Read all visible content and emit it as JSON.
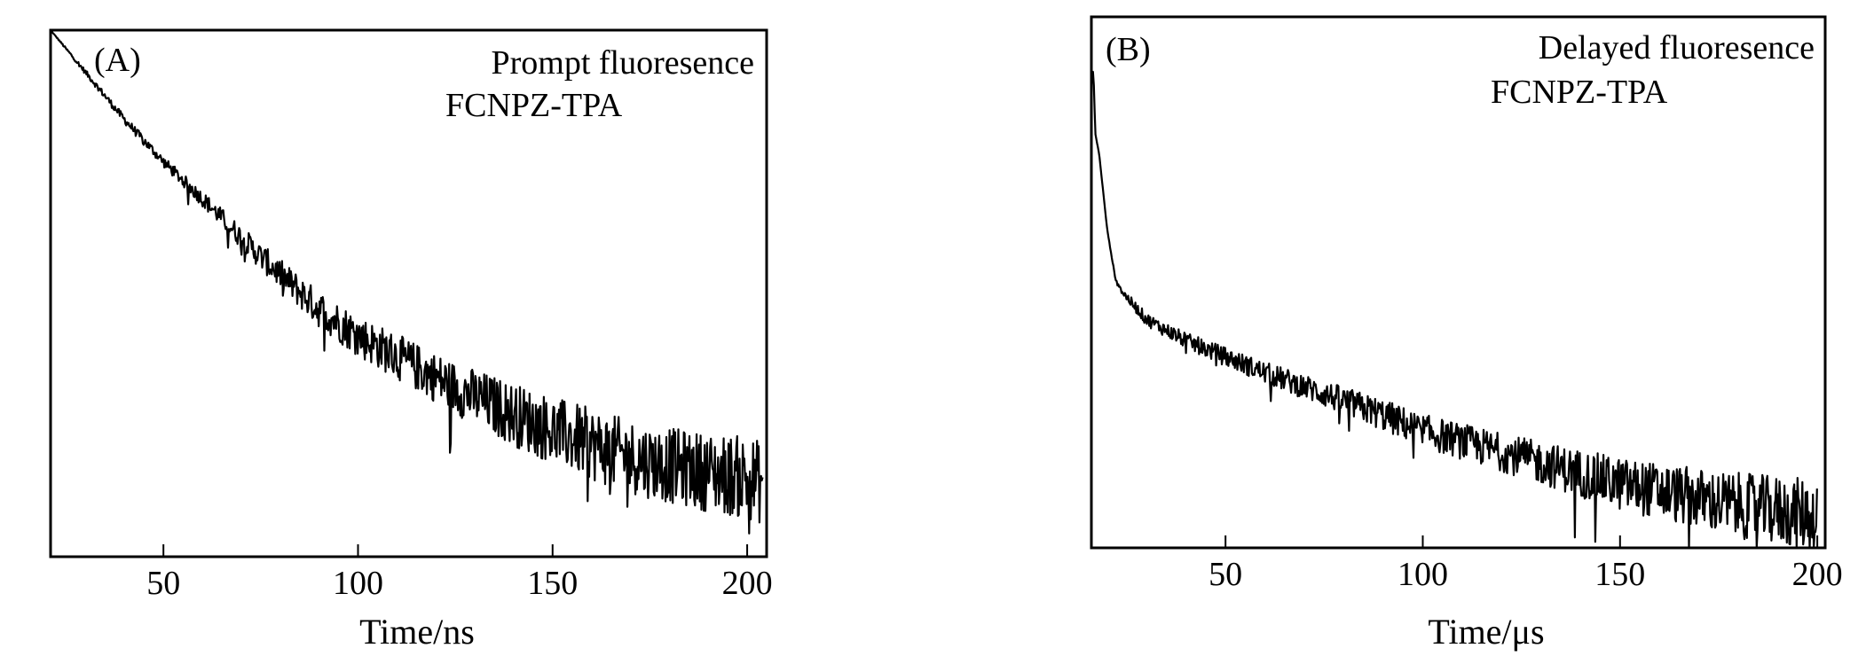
{
  "chart_data": [
    {
      "type": "line",
      "panel_label": "(A)",
      "annotation": [
        "Prompt fluoresence",
        "FCNPZ-TPA"
      ],
      "xlabel": "Time/ns",
      "ylabel": "",
      "xlim": [
        21,
        205
      ],
      "ylim": [
        0,
        1
      ],
      "y_units": "normalized intensity (arbitrary, no y ticks)",
      "xticks": [
        50,
        100,
        150,
        200
      ],
      "grid": false,
      "series": [
        {
          "name": "FCNPZ-TPA prompt",
          "color": "#000000",
          "x": [
            21,
            30,
            40,
            50,
            60,
            75,
            90,
            100,
            115,
            125,
            140,
            150,
            165,
            175,
            190,
            200,
            204
          ],
          "y": [
            1.0,
            0.92,
            0.83,
            0.75,
            0.68,
            0.57,
            0.47,
            0.42,
            0.36,
            0.32,
            0.27,
            0.24,
            0.2,
            0.18,
            0.16,
            0.15,
            0.14
          ],
          "noise": [
            0.0,
            0.005,
            0.008,
            0.01,
            0.015,
            0.025,
            0.035,
            0.04,
            0.045,
            0.05,
            0.06,
            0.065,
            0.07,
            0.07,
            0.075,
            0.08,
            0.08
          ]
        }
      ]
    },
    {
      "type": "line",
      "panel_label": "(B)",
      "annotation": [
        "Delayed fluoresence",
        "FCNPZ-TPA"
      ],
      "xlabel": "Time/μs",
      "ylabel": "",
      "xlim": [
        16,
        202
      ],
      "ylim": [
        0,
        1
      ],
      "y_units": "normalized intensity (arbitrary, no y ticks)",
      "xticks": [
        50,
        100,
        150,
        200
      ],
      "grid": false,
      "series": [
        {
          "name": "FCNPZ-TPA delayed",
          "color": "#000000",
          "x": [
            16,
            16.5,
            17,
            18,
            20,
            22,
            24,
            30,
            40,
            50,
            60,
            75,
            90,
            100,
            115,
            125,
            140,
            150,
            165,
            175,
            190,
            200
          ],
          "y": [
            0.88,
            0.9,
            0.78,
            0.74,
            0.6,
            0.51,
            0.48,
            0.43,
            0.39,
            0.36,
            0.33,
            0.29,
            0.25,
            0.22,
            0.19,
            0.17,
            0.14,
            0.12,
            0.1,
            0.085,
            0.07,
            0.06
          ],
          "noise": [
            0,
            0,
            0,
            0,
            0,
            0.003,
            0.008,
            0.012,
            0.015,
            0.018,
            0.02,
            0.025,
            0.03,
            0.032,
            0.035,
            0.038,
            0.045,
            0.05,
            0.055,
            0.06,
            0.065,
            0.07
          ]
        }
      ]
    }
  ]
}
